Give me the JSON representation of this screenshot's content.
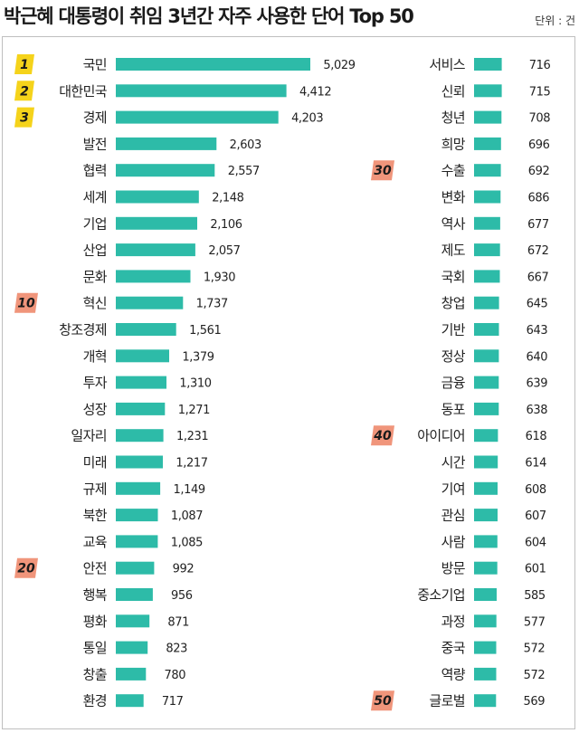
{
  "title": "박근혜 대통령이 취임 3년간 자주 사용한 단어 Top 50",
  "unit": "단위 : 건",
  "colors": {
    "bar": "#2dbba8",
    "rank_top3": "#f5d31b",
    "rank_milestone": "#f0957b"
  },
  "rank_badges": [
    {
      "rank": 1,
      "label": "1",
      "style": "top3"
    },
    {
      "rank": 2,
      "label": "2",
      "style": "top3"
    },
    {
      "rank": 3,
      "label": "3",
      "style": "top3"
    },
    {
      "rank": 10,
      "label": "10",
      "style": "milestone"
    },
    {
      "rank": 20,
      "label": "20",
      "style": "milestone"
    },
    {
      "rank": 30,
      "label": "30",
      "style": "milestone"
    },
    {
      "rank": 40,
      "label": "40",
      "style": "milestone"
    },
    {
      "rank": 50,
      "label": "50",
      "style": "milestone"
    }
  ],
  "chart_data": {
    "type": "bar",
    "orientation": "horizontal",
    "title": "박근혜 대통령이 취임 3년간 자주 사용한 단어 Top 50",
    "unit": "단위 : 건",
    "categories": [
      "국민",
      "대한민국",
      "경제",
      "발전",
      "협력",
      "세계",
      "기업",
      "산업",
      "문화",
      "혁신",
      "창조경제",
      "개혁",
      "투자",
      "성장",
      "일자리",
      "미래",
      "규제",
      "북한",
      "교육",
      "안전",
      "행복",
      "평화",
      "통일",
      "창출",
      "환경",
      "서비스",
      "신뢰",
      "청년",
      "희망",
      "수출",
      "변화",
      "역사",
      "제도",
      "국회",
      "창업",
      "기반",
      "정상",
      "금융",
      "동포",
      "아이디어",
      "시간",
      "기여",
      "관심",
      "사람",
      "방문",
      "중소기업",
      "과정",
      "중국",
      "역량",
      "글로벌"
    ],
    "values": [
      5029,
      4412,
      4203,
      2603,
      2557,
      2148,
      2106,
      2057,
      1930,
      1737,
      1561,
      1379,
      1310,
      1271,
      1231,
      1217,
      1149,
      1087,
      1085,
      992,
      956,
      871,
      823,
      780,
      717,
      716,
      715,
      708,
      696,
      692,
      686,
      677,
      672,
      667,
      645,
      643,
      640,
      639,
      638,
      618,
      614,
      608,
      607,
      604,
      601,
      585,
      577,
      572,
      572,
      569
    ],
    "value_labels": [
      "5,029",
      "4,412",
      "4,203",
      "2,603",
      "2,557",
      "2,148",
      "2,106",
      "2,057",
      "1,930",
      "1,737",
      "1,561",
      "1,379",
      "1,310",
      "1,271",
      "1,231",
      "1,217",
      "1,149",
      "1,087",
      "1,085",
      "992",
      "956",
      "871",
      "823",
      "780",
      "717",
      "716",
      "715",
      "708",
      "696",
      "692",
      "686",
      "677",
      "672",
      "667",
      "645",
      "643",
      "640",
      "639",
      "638",
      "618",
      "614",
      "608",
      "607",
      "604",
      "601",
      "585",
      "577",
      "572",
      "572",
      "569"
    ],
    "xlim": [
      0,
      5029
    ],
    "grid": false,
    "columns": 2
  }
}
